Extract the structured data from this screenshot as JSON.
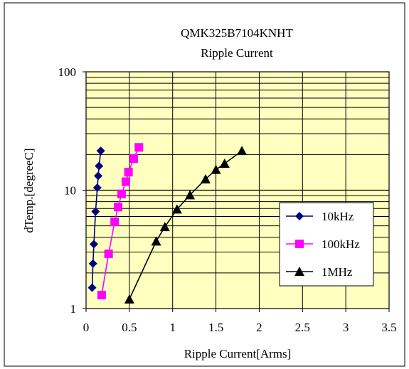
{
  "chart_data": {
    "type": "line",
    "title": "QMK325B7104KNHT",
    "subtitle": "Ripple Current",
    "xlabel": "Ripple Current[Arms]",
    "ylabel": "dTemp.[degreeC]",
    "xlim": [
      0,
      3.5
    ],
    "ylim": [
      1,
      100
    ],
    "yscale": "log",
    "grid": true,
    "legend_position": "right",
    "x_ticks": [
      "0",
      "0.5",
      "1",
      "1.5",
      "2",
      "2.5",
      "3",
      "3.5"
    ],
    "y_ticks": [
      "1",
      "10",
      "100"
    ],
    "colors": {
      "plot_bg": "#ffffc0",
      "chart_bg": "#ffffff",
      "grid": "#000000"
    },
    "series": [
      {
        "name": "10kHz",
        "color": "#000080",
        "marker": "diamond",
        "points": [
          {
            "x": 0.07,
            "y": 1.5
          },
          {
            "x": 0.08,
            "y": 2.4
          },
          {
            "x": 0.09,
            "y": 3.5
          },
          {
            "x": 0.11,
            "y": 6.6
          },
          {
            "x": 0.13,
            "y": 10.5
          },
          {
            "x": 0.14,
            "y": 13.2
          },
          {
            "x": 0.15,
            "y": 16
          },
          {
            "x": 0.17,
            "y": 21.5
          }
        ]
      },
      {
        "name": "100kHz",
        "color": "#ff00ff",
        "marker": "square",
        "points": [
          {
            "x": 0.18,
            "y": 1.3
          },
          {
            "x": 0.26,
            "y": 2.9
          },
          {
            "x": 0.33,
            "y": 5.4
          },
          {
            "x": 0.37,
            "y": 7.2
          },
          {
            "x": 0.41,
            "y": 9.3
          },
          {
            "x": 0.46,
            "y": 11.8
          },
          {
            "x": 0.49,
            "y": 14.2
          },
          {
            "x": 0.55,
            "y": 18.5
          },
          {
            "x": 0.61,
            "y": 23
          }
        ]
      },
      {
        "name": "1MHz",
        "color": "#000000",
        "marker": "triangle",
        "points": [
          {
            "x": 0.5,
            "y": 1.2
          },
          {
            "x": 0.81,
            "y": 3.7
          },
          {
            "x": 0.91,
            "y": 4.9
          },
          {
            "x": 1.05,
            "y": 6.9
          },
          {
            "x": 1.2,
            "y": 9.1
          },
          {
            "x": 1.38,
            "y": 12.4
          },
          {
            "x": 1.5,
            "y": 14.9
          },
          {
            "x": 1.6,
            "y": 16.8
          },
          {
            "x": 1.8,
            "y": 21.5
          }
        ]
      }
    ]
  }
}
